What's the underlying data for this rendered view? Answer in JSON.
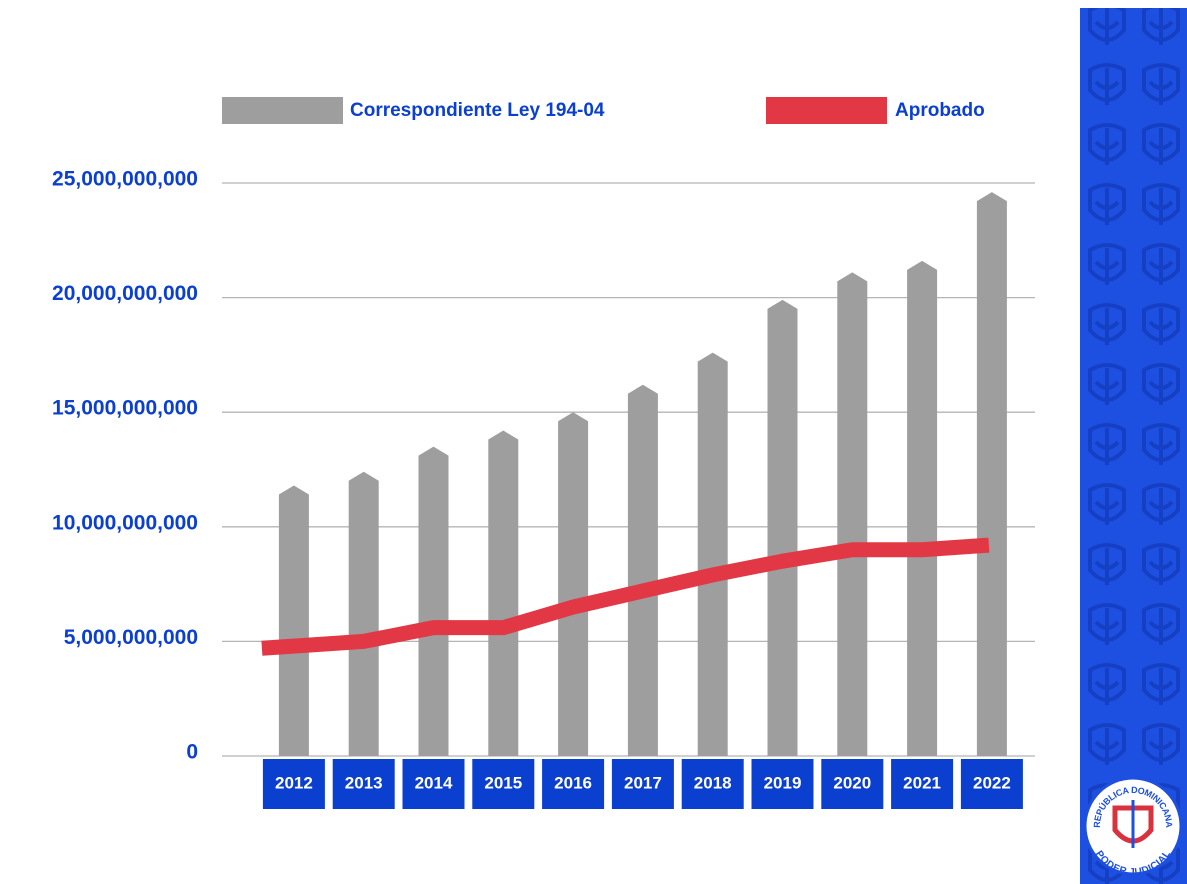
{
  "chart_data": {
    "type": "bar_line",
    "categories": [
      "2012",
      "2013",
      "2014",
      "2015",
      "2016",
      "2017",
      "2018",
      "2019",
      "2020",
      "2021",
      "2022"
    ],
    "series": [
      {
        "name": "Correspondiente Ley 194-04",
        "color": "#9e9e9e",
        "values": [
          11800000000,
          12400000000,
          13500000000,
          14200000000,
          15000000000,
          16200000000,
          17600000000,
          19900000000,
          21100000000,
          21600000000,
          24600000000
        ]
      },
      {
        "name": "Aprobado",
        "color": "#e23744",
        "values": [
          4700000000,
          5000000000,
          5600000000,
          5600000000,
          6500000000,
          7200000000,
          7900000000,
          8500000000,
          9000000000,
          9000000000,
          9200000000
        ]
      }
    ],
    "ylim": [
      0,
      25000000000
    ],
    "yticks": [
      0,
      {
        "value": 5000000000,
        "label": "5,000,000,000"
      },
      {
        "value": 10000000000,
        "label": "10,000,000,000"
      },
      {
        "value": 15000000000,
        "label": "15,000,000,000"
      },
      {
        "value": 20000000000,
        "label": "20,000,000,000"
      },
      {
        "value": 25000000000,
        "label": "25,000,000,000"
      }
    ],
    "grid": true
  },
  "seal": {
    "top": "REPÚBLICA DOMINICANA",
    "bottom": "PODER JUDICIAL"
  }
}
